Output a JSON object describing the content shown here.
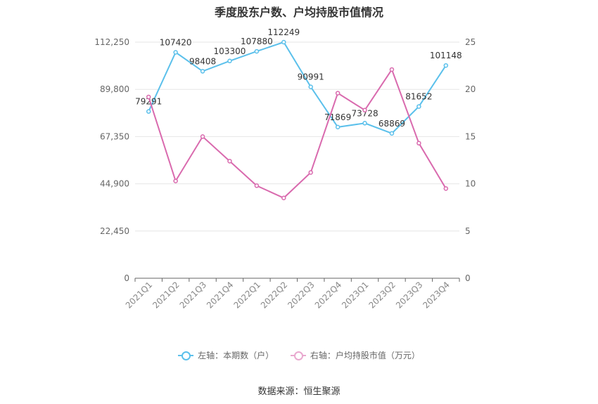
{
  "chart_data": {
    "type": "line",
    "title": "季度股东户数、户均持股市值情况",
    "categories": [
      "2021Q1",
      "2021Q2",
      "2021Q3",
      "2021Q4",
      "2022Q1",
      "2022Q2",
      "2022Q3",
      "2022Q4",
      "2023Q1",
      "2023Q2",
      "2023Q3",
      "2023Q4"
    ],
    "left_axis": {
      "ticks": [
        "0",
        "22,450",
        "44,900",
        "67,350",
        "89,800",
        "112,250"
      ],
      "min": 0,
      "max": 112250
    },
    "right_axis": {
      "ticks": [
        "0",
        "5",
        "10",
        "15",
        "20",
        "25"
      ],
      "min": 0,
      "max": 25
    },
    "series": [
      {
        "name": "左轴：本期数（户）",
        "axis": "left",
        "color": "#5bc0eb",
        "values": [
          79291,
          107420,
          98408,
          103300,
          107880,
          112249,
          90991,
          71869,
          73728,
          68869,
          81652,
          101148
        ],
        "labels": [
          "79291",
          "107420",
          "98408",
          "103300",
          "107880",
          "112249",
          "90991",
          "71869",
          "73728",
          "68869",
          "81652",
          "101148"
        ]
      },
      {
        "name": "右轴：户均持股市值（万元）",
        "axis": "right",
        "color": "#d96aae",
        "values": [
          19.2,
          10.3,
          15.0,
          12.4,
          9.8,
          8.5,
          11.2,
          19.6,
          17.8,
          22.1,
          14.3,
          9.5
        ]
      }
    ],
    "grid": true,
    "legend": "bottom-center",
    "source": "数据来源：恒生聚源"
  }
}
